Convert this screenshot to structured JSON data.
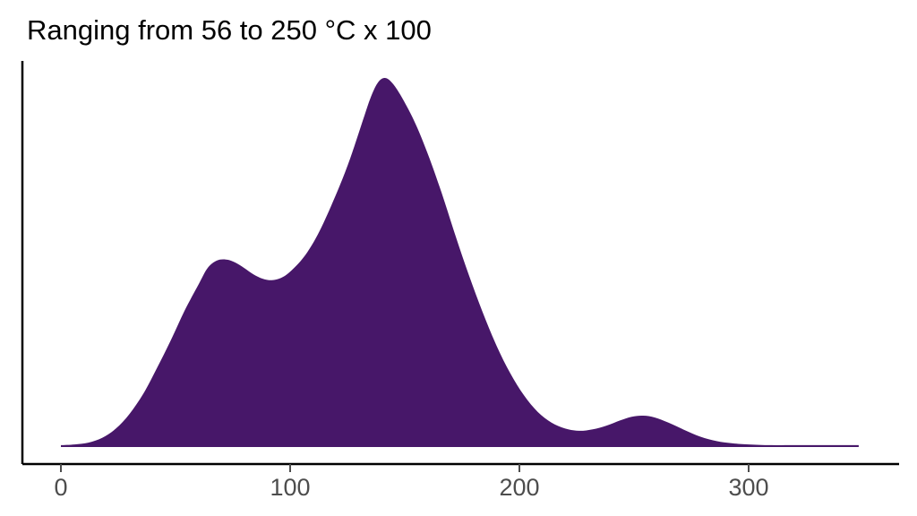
{
  "chart_data": {
    "type": "area",
    "subtype": "density",
    "title": "Ranging from 56 to 250 °C x 100",
    "xlabel": "",
    "ylabel": "",
    "x_ticks": [
      "0",
      "100",
      "200",
      "300"
    ],
    "x_tick_values": [
      0,
      100,
      200,
      300
    ],
    "x_range": [
      0,
      348
    ],
    "y_range": [
      0,
      1
    ],
    "grid": false,
    "legend": "none",
    "fill_color": "#471769",
    "background_color": "#ffffff",
    "axis_color": "#000000",
    "tick_label_color": "#4d4d4d",
    "points": [
      [
        0,
        0.005
      ],
      [
        6,
        0.007
      ],
      [
        12,
        0.012
      ],
      [
        18,
        0.025
      ],
      [
        24,
        0.05
      ],
      [
        30,
        0.09
      ],
      [
        36,
        0.145
      ],
      [
        42,
        0.215
      ],
      [
        48,
        0.29
      ],
      [
        54,
        0.37
      ],
      [
        60,
        0.44
      ],
      [
        64,
        0.485
      ],
      [
        68,
        0.505
      ],
      [
        72,
        0.508
      ],
      [
        76,
        0.5
      ],
      [
        80,
        0.485
      ],
      [
        84,
        0.468
      ],
      [
        88,
        0.456
      ],
      [
        92,
        0.452
      ],
      [
        96,
        0.458
      ],
      [
        100,
        0.475
      ],
      [
        106,
        0.515
      ],
      [
        112,
        0.575
      ],
      [
        118,
        0.655
      ],
      [
        124,
        0.745
      ],
      [
        128,
        0.815
      ],
      [
        132,
        0.89
      ],
      [
        135,
        0.945
      ],
      [
        138,
        0.985
      ],
      [
        141,
        1.0
      ],
      [
        144,
        0.99
      ],
      [
        148,
        0.955
      ],
      [
        154,
        0.885
      ],
      [
        160,
        0.795
      ],
      [
        166,
        0.69
      ],
      [
        172,
        0.575
      ],
      [
        178,
        0.465
      ],
      [
        184,
        0.365
      ],
      [
        190,
        0.275
      ],
      [
        196,
        0.2
      ],
      [
        202,
        0.14
      ],
      [
        208,
        0.095
      ],
      [
        214,
        0.066
      ],
      [
        220,
        0.05
      ],
      [
        226,
        0.044
      ],
      [
        232,
        0.048
      ],
      [
        238,
        0.058
      ],
      [
        244,
        0.072
      ],
      [
        249,
        0.082
      ],
      [
        254,
        0.085
      ],
      [
        259,
        0.08
      ],
      [
        265,
        0.066
      ],
      [
        272,
        0.046
      ],
      [
        279,
        0.028
      ],
      [
        286,
        0.016
      ],
      [
        293,
        0.01
      ],
      [
        300,
        0.007
      ],
      [
        310,
        0.005
      ],
      [
        325,
        0.005
      ],
      [
        348,
        0.005
      ]
    ]
  }
}
